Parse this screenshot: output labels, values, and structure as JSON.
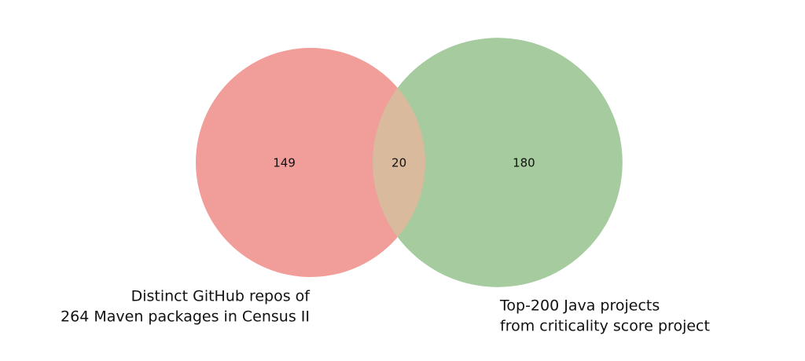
{
  "chart_data": {
    "type": "venn",
    "sets": [
      {
        "name": [
          "Distinct GitHub repos of",
          "264 Maven packages in Census II"
        ],
        "color": "#f19e9b"
      },
      {
        "name": [
          "Top-200 Java projects",
          "from criticality score project"
        ],
        "color": "#a5cb9e"
      }
    ],
    "overlap_color": "#d9ba9c",
    "values": [
      149,
      20,
      180
    ]
  }
}
